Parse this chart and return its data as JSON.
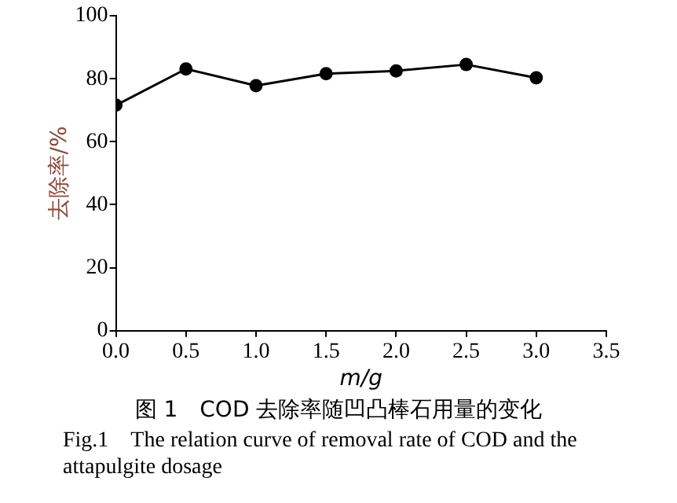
{
  "chart_data": {
    "type": "line",
    "title": "图 1　COD 去除率随凹凸棒石用量的变化",
    "subtitle": "Fig.1　The relation curve of removal rate of COD and the attapulgite dosage",
    "xlabel": "m/g",
    "ylabel": "去除率/%",
    "x": [
      0,
      0.5,
      1.0,
      1.5,
      2.0,
      2.5,
      3.0
    ],
    "series": [
      {
        "color": "#000000",
        "values": [
          71.6,
          83.1,
          77.8,
          81.6,
          82.5,
          84.5,
          80.3
        ]
      }
    ],
    "xlim": [
      0,
      3.5
    ],
    "xticks": [
      {
        "value": 0,
        "label": "0.0"
      },
      {
        "value": 0.5,
        "label": "0.5"
      },
      {
        "value": 1,
        "label": "1.0"
      },
      {
        "value": 1.5,
        "label": "1.5"
      },
      {
        "value": 2,
        "label": "2.0"
      },
      {
        "value": 2.5,
        "label": "2.5"
      },
      {
        "value": 3,
        "label": "3.0"
      },
      {
        "value": 3.5,
        "label": "3.5"
      }
    ],
    "ylim": [
      0,
      100
    ],
    "yticks": [
      0,
      20,
      40,
      60,
      80,
      100
    ],
    "grid": false,
    "legend": false,
    "marker": "circle",
    "line_style": "solid"
  }
}
